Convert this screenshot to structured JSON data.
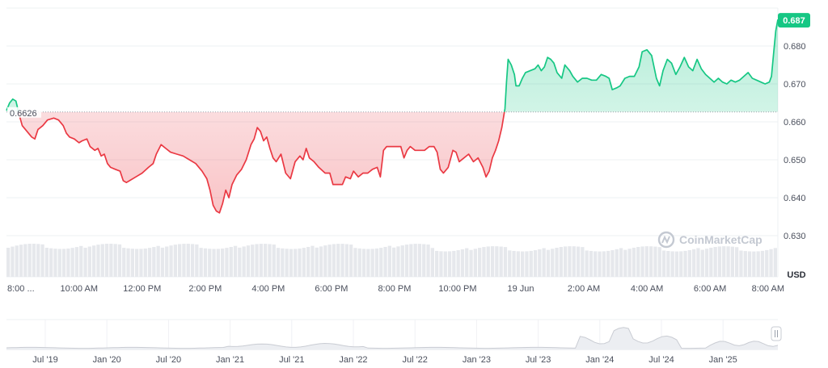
{
  "chart_data": {
    "type": "line",
    "unit": "USD",
    "baseline": 0.6626,
    "baseline_label": "0.6626",
    "current_label": "0.687",
    "ylim": [
      0.625,
      0.69
    ],
    "yticks": [
      "0.630",
      "0.640",
      "0.650",
      "0.660",
      "0.670",
      "0.680"
    ],
    "yticks_values": [
      0.63,
      0.64,
      0.65,
      0.66,
      0.67,
      0.68
    ],
    "xticks": [
      "8:00 ...",
      "10:00 AM",
      "12:00 PM",
      "2:00 PM",
      "4:00 PM",
      "6:00 PM",
      "8:00 PM",
      "10:00 PM",
      "19 Jun",
      "2:00 AM",
      "4:00 AM",
      "6:00 AM",
      "8:00 AM"
    ],
    "xticks_hours": [
      0.0,
      2.0,
      4.0,
      6.0,
      8.0,
      10.0,
      12.0,
      14.0,
      16.0,
      18.0,
      20.0,
      22.0,
      24.0
    ],
    "x_hours_range": [
      -0.3,
      24.15
    ],
    "price_points": [
      [
        -0.3,
        0.663
      ],
      [
        -0.2,
        0.665
      ],
      [
        -0.1,
        0.666
      ],
      [
        0.0,
        0.6655
      ],
      [
        0.1,
        0.662
      ],
      [
        0.2,
        0.659
      ],
      [
        0.35,
        0.6575
      ],
      [
        0.5,
        0.656
      ],
      [
        0.6,
        0.6555
      ],
      [
        0.7,
        0.658
      ],
      [
        0.85,
        0.659
      ],
      [
        1.0,
        0.6605
      ],
      [
        1.2,
        0.661
      ],
      [
        1.35,
        0.6605
      ],
      [
        1.5,
        0.659
      ],
      [
        1.6,
        0.657
      ],
      [
        1.7,
        0.656
      ],
      [
        1.85,
        0.6555
      ],
      [
        2.0,
        0.6545
      ],
      [
        2.1,
        0.655
      ],
      [
        2.25,
        0.6555
      ],
      [
        2.35,
        0.6535
      ],
      [
        2.5,
        0.6525
      ],
      [
        2.6,
        0.653
      ],
      [
        2.7,
        0.651
      ],
      [
        2.8,
        0.6515
      ],
      [
        2.9,
        0.649
      ],
      [
        3.0,
        0.648
      ],
      [
        3.15,
        0.6475
      ],
      [
        3.3,
        0.647
      ],
      [
        3.4,
        0.6445
      ],
      [
        3.5,
        0.644
      ],
      [
        3.6,
        0.6445
      ],
      [
        3.8,
        0.6455
      ],
      [
        4.0,
        0.6465
      ],
      [
        4.2,
        0.648
      ],
      [
        4.35,
        0.649
      ],
      [
        4.45,
        0.6515
      ],
      [
        4.6,
        0.654
      ],
      [
        4.75,
        0.653
      ],
      [
        4.9,
        0.652
      ],
      [
        5.1,
        0.6515
      ],
      [
        5.3,
        0.651
      ],
      [
        5.5,
        0.65
      ],
      [
        5.7,
        0.649
      ],
      [
        5.9,
        0.647
      ],
      [
        6.05,
        0.645
      ],
      [
        6.15,
        0.642
      ],
      [
        6.25,
        0.638
      ],
      [
        6.35,
        0.6365
      ],
      [
        6.45,
        0.636
      ],
      [
        6.55,
        0.6385
      ],
      [
        6.65,
        0.642
      ],
      [
        6.75,
        0.64
      ],
      [
        6.85,
        0.6435
      ],
      [
        7.0,
        0.646
      ],
      [
        7.15,
        0.6475
      ],
      [
        7.3,
        0.65
      ],
      [
        7.45,
        0.654
      ],
      [
        7.55,
        0.6555
      ],
      [
        7.65,
        0.6585
      ],
      [
        7.75,
        0.6575
      ],
      [
        7.85,
        0.655
      ],
      [
        7.95,
        0.656
      ],
      [
        8.05,
        0.653
      ],
      [
        8.15,
        0.6505
      ],
      [
        8.25,
        0.6495
      ],
      [
        8.4,
        0.6515
      ],
      [
        8.55,
        0.6465
      ],
      [
        8.7,
        0.645
      ],
      [
        8.85,
        0.6495
      ],
      [
        9.0,
        0.651
      ],
      [
        9.1,
        0.65
      ],
      [
        9.2,
        0.653
      ],
      [
        9.3,
        0.6505
      ],
      [
        9.45,
        0.6495
      ],
      [
        9.6,
        0.648
      ],
      [
        9.8,
        0.6465
      ],
      [
        9.95,
        0.6465
      ],
      [
        10.05,
        0.6435
      ],
      [
        10.2,
        0.6435
      ],
      [
        10.35,
        0.6435
      ],
      [
        10.45,
        0.6455
      ],
      [
        10.6,
        0.645
      ],
      [
        10.7,
        0.647
      ],
      [
        10.85,
        0.6455
      ],
      [
        11.0,
        0.6465
      ],
      [
        11.15,
        0.6465
      ],
      [
        11.3,
        0.6475
      ],
      [
        11.45,
        0.648
      ],
      [
        11.55,
        0.6455
      ],
      [
        11.65,
        0.6525
      ],
      [
        11.75,
        0.6535
      ],
      [
        11.9,
        0.6535
      ],
      [
        12.05,
        0.6535
      ],
      [
        12.2,
        0.6535
      ],
      [
        12.3,
        0.6505
      ],
      [
        12.4,
        0.6525
      ],
      [
        12.5,
        0.6535
      ],
      [
        12.65,
        0.6525
      ],
      [
        12.8,
        0.6525
      ],
      [
        12.95,
        0.6525
      ],
      [
        13.1,
        0.6535
      ],
      [
        13.25,
        0.6535
      ],
      [
        13.35,
        0.652
      ],
      [
        13.45,
        0.6475
      ],
      [
        13.55,
        0.6465
      ],
      [
        13.7,
        0.648
      ],
      [
        13.85,
        0.6525
      ],
      [
        13.95,
        0.652
      ],
      [
        14.05,
        0.6495
      ],
      [
        14.2,
        0.6505
      ],
      [
        14.35,
        0.6515
      ],
      [
        14.5,
        0.6495
      ],
      [
        14.65,
        0.6505
      ],
      [
        14.8,
        0.648
      ],
      [
        14.9,
        0.6455
      ],
      [
        15.0,
        0.647
      ],
      [
        15.1,
        0.6505
      ],
      [
        15.2,
        0.6525
      ],
      [
        15.3,
        0.655
      ],
      [
        15.4,
        0.6585
      ],
      [
        15.5,
        0.6635
      ],
      [
        15.55,
        0.6705
      ],
      [
        15.6,
        0.6765
      ],
      [
        15.7,
        0.675
      ],
      [
        15.8,
        0.6725
      ],
      [
        15.85,
        0.6695
      ],
      [
        15.95,
        0.6695
      ],
      [
        16.05,
        0.6715
      ],
      [
        16.15,
        0.673
      ],
      [
        16.3,
        0.6735
      ],
      [
        16.45,
        0.674
      ],
      [
        16.55,
        0.675
      ],
      [
        16.65,
        0.6735
      ],
      [
        16.75,
        0.6745
      ],
      [
        16.85,
        0.677
      ],
      [
        16.95,
        0.6765
      ],
      [
        17.05,
        0.6755
      ],
      [
        17.15,
        0.673
      ],
      [
        17.3,
        0.6715
      ],
      [
        17.4,
        0.675
      ],
      [
        17.55,
        0.6735
      ],
      [
        17.65,
        0.672
      ],
      [
        17.8,
        0.6705
      ],
      [
        17.95,
        0.6715
      ],
      [
        18.1,
        0.6715
      ],
      [
        18.25,
        0.671
      ],
      [
        18.4,
        0.671
      ],
      [
        18.55,
        0.6725
      ],
      [
        18.7,
        0.672
      ],
      [
        18.8,
        0.6715
      ],
      [
        18.9,
        0.6685
      ],
      [
        19.05,
        0.669
      ],
      [
        19.15,
        0.6695
      ],
      [
        19.3,
        0.6715
      ],
      [
        19.45,
        0.672
      ],
      [
        19.6,
        0.672
      ],
      [
        19.75,
        0.6745
      ],
      [
        19.85,
        0.6785
      ],
      [
        20.0,
        0.679
      ],
      [
        20.15,
        0.6775
      ],
      [
        20.3,
        0.6715
      ],
      [
        20.4,
        0.6695
      ],
      [
        20.55,
        0.6705
      ],
      [
        20.7,
        0.6695
      ],
      [
        20.85,
        0.6705
      ],
      [
        21.0,
        0.6695
      ],
      [
        21.15,
        0.669
      ],
      [
        21.3,
        0.6695
      ],
      [
        21.45,
        0.6675
      ],
      [
        21.6,
        0.6665
      ],
      [
        21.75,
        0.669
      ],
      [
        21.85,
        0.671
      ],
      [
        21.95,
        0.6695
      ],
      [
        22.05,
        0.667
      ],
      [
        22.2,
        0.6685
      ],
      [
        22.35,
        0.6705
      ],
      [
        22.5,
        0.672
      ],
      [
        22.65,
        0.674
      ],
      [
        22.8,
        0.676
      ],
      [
        22.95,
        0.6765
      ],
      [
        23.1,
        0.677
      ],
      [
        23.25,
        0.6755
      ],
      [
        23.35,
        0.674
      ],
      [
        23.45,
        0.673
      ],
      [
        23.6,
        0.6735
      ],
      [
        23.7,
        0.6725
      ],
      [
        23.8,
        0.6735
      ],
      [
        23.9,
        0.6745
      ],
      [
        24.0,
        0.6755
      ],
      [
        24.05,
        0.6765
      ],
      [
        24.1,
        0.676
      ],
      [
        24.15,
        0.675
      ]
    ],
    "right_segment": [
      [
        0.0,
        0.6735
      ],
      [
        0.08,
        0.6765
      ],
      [
        0.16,
        0.6755
      ],
      [
        0.24,
        0.6725
      ],
      [
        0.32,
        0.6745
      ],
      [
        0.4,
        0.677
      ],
      [
        0.48,
        0.6745
      ],
      [
        0.56,
        0.6735
      ],
      [
        0.64,
        0.6765
      ],
      [
        0.72,
        0.674
      ],
      [
        0.8,
        0.6725
      ],
      [
        0.88,
        0.6715
      ],
      [
        0.96,
        0.6705
      ],
      [
        1.04,
        0.6715
      ],
      [
        1.12,
        0.6705
      ],
      [
        1.2,
        0.67
      ],
      [
        1.28,
        0.671
      ],
      [
        1.36,
        0.6705
      ],
      [
        1.44,
        0.671
      ],
      [
        1.52,
        0.672
      ],
      [
        1.6,
        0.673
      ],
      [
        1.68,
        0.6715
      ],
      [
        1.76,
        0.671
      ],
      [
        1.84,
        0.6705
      ],
      [
        1.92,
        0.67
      ],
      [
        2.0,
        0.6705
      ],
      [
        2.04,
        0.672
      ],
      [
        2.08,
        0.678
      ],
      [
        2.12,
        0.684
      ],
      [
        2.16,
        0.687
      ]
    ],
    "volume_bars": 180,
    "navigator_xticks": [
      "Jul '19",
      "Jan '20",
      "Jul '20",
      "Jan '21",
      "Jul '21",
      "Jan '22",
      "Jul '22",
      "Jan '23",
      "Jul '23",
      "Jan '24",
      "Jul '24",
      "Jan '25"
    ],
    "watermark": "CoinMarketCap",
    "colors": {
      "up": "#16c784",
      "down": "#ea3943",
      "up_fill": "#16c784",
      "down_fill": "#ea3943",
      "grid": "#eef0f3",
      "badge": "#16c784",
      "volume": "#e6e8ec",
      "navigator_line": "#c9ccd3"
    }
  }
}
